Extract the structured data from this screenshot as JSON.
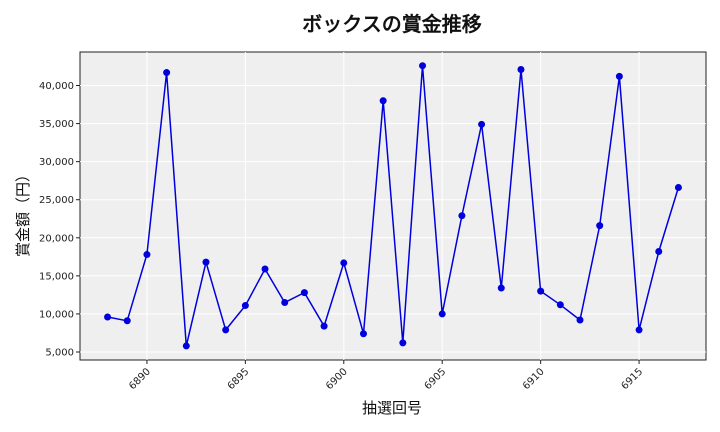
{
  "chart_data": {
    "type": "line",
    "title": "ボックスの賞金推移",
    "xlabel": "抽選回号",
    "ylabel": "賞金額（円）",
    "x": [
      6888,
      6889,
      6890,
      6891,
      6892,
      6893,
      6894,
      6895,
      6896,
      6897,
      6898,
      6899,
      6900,
      6901,
      6902,
      6903,
      6904,
      6905,
      6906,
      6907,
      6908,
      6909,
      6910,
      6911,
      6912,
      6913,
      6914,
      6915,
      6916,
      6917
    ],
    "series": [
      {
        "name": "ボックス",
        "color": "#0000dd",
        "values": [
          9600,
          9100,
          17800,
          41700,
          5800,
          16800,
          7900,
          11100,
          15900,
          11500,
          12800,
          8400,
          16700,
          7400,
          38000,
          6200,
          42600,
          10000,
          22900,
          34900,
          13400,
          42100,
          13000,
          11200,
          9200,
          21600,
          41200,
          7900,
          18200,
          26600
        ]
      }
    ],
    "xticks": [
      6890,
      6895,
      6900,
      6905,
      6910,
      6915
    ],
    "xtick_labels": [
      "6890",
      "6895",
      "6900",
      "6905",
      "6910",
      "6915"
    ],
    "yticks": [
      5000,
      10000,
      15000,
      20000,
      25000,
      30000,
      35000,
      40000
    ],
    "ytick_labels": [
      "5,000",
      "10,000",
      "15,000",
      "20,000",
      "25,000",
      "30,000",
      "35,000",
      "40,000"
    ],
    "xlim": [
      6886.6,
      6918.4
    ],
    "ylim": [
      3950,
      44400
    ],
    "grid": true,
    "legend": "none",
    "background": "#efefef"
  }
}
